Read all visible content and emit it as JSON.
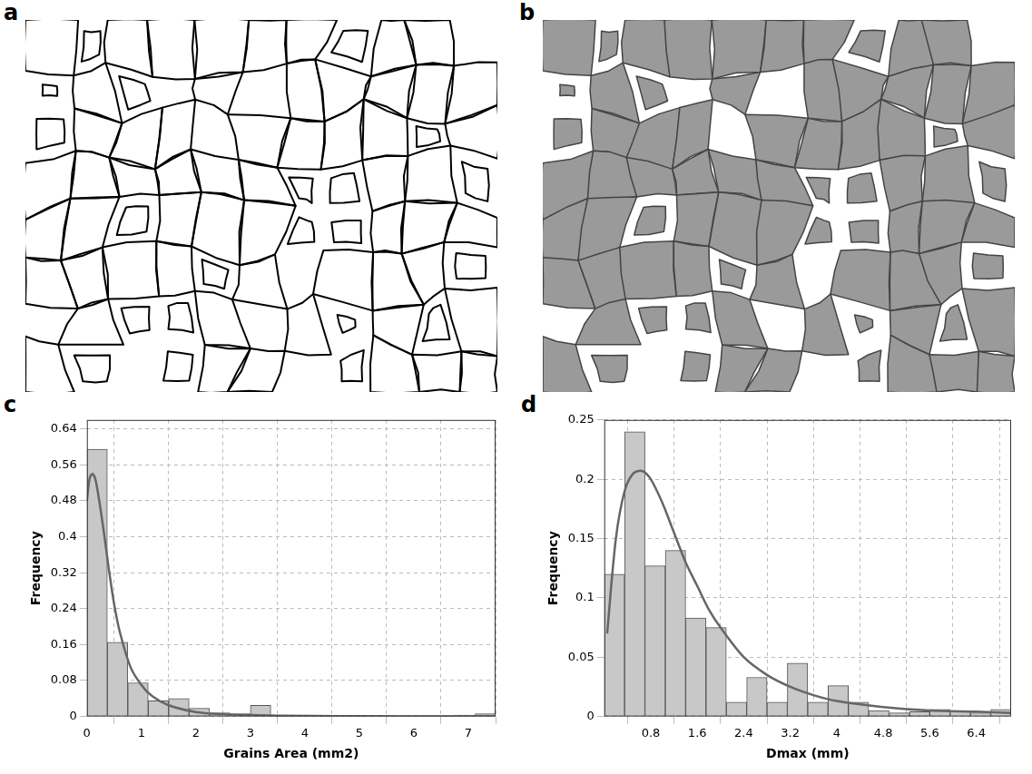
{
  "panel_labels": [
    "a",
    "b"
  ],
  "chart_data": [
    {
      "panel_label": "c",
      "type": "histogram",
      "x_label": "Grains Area (mm2)",
      "y_label": "Frequency",
      "bins": [
        0,
        0.375,
        0.75,
        1.125,
        1.5,
        1.875,
        2.25,
        2.625,
        3.0,
        3.375,
        3.75,
        4.125,
        4.5,
        4.875,
        5.25,
        5.625,
        6.0,
        6.375,
        6.75,
        7.125,
        7.5
      ],
      "counts": [
        0.595,
        0.165,
        0.075,
        0.035,
        0.04,
        0.018,
        0.008,
        0.006,
        0.025,
        0.003,
        0.003,
        0.003,
        0.002,
        0.002,
        0.002,
        0.001,
        0.001,
        0.001,
        0.003,
        0.006
      ],
      "color": "#c8c8c8",
      "xlim": [
        0,
        7.5
      ],
      "ylim": [
        0,
        0.66
      ],
      "xticks": [
        0,
        1,
        2,
        3,
        4,
        5,
        6,
        7
      ],
      "yticks": [
        0,
        0.08,
        0.16,
        0.24,
        0.32,
        0.4,
        0.48,
        0.56,
        0.64
      ],
      "grid": true,
      "series": [
        {
          "type": "line",
          "color": "#666666",
          "x": [
            0,
            0.05,
            0.1,
            0.15,
            0.2,
            0.3,
            0.4,
            0.5,
            0.6,
            0.8,
            1.0,
            1.2,
            1.5,
            2,
            2.5,
            3,
            4,
            5,
            6,
            7,
            7.5
          ],
          "values": [
            0.48,
            0.53,
            0.54,
            0.53,
            0.5,
            0.42,
            0.33,
            0.25,
            0.19,
            0.11,
            0.07,
            0.045,
            0.025,
            0.01,
            0.005,
            0.003,
            0.001,
            0.0005,
            0.0003,
            0.0002,
            0.0001
          ]
        }
      ]
    },
    {
      "panel_label": "d",
      "type": "histogram",
      "x_label": "Dmax (mm)",
      "y_label": "Frequency",
      "bins": [
        0,
        0.35,
        0.7,
        1.05,
        1.4,
        1.75,
        2.1,
        2.45,
        2.8,
        3.15,
        3.5,
        3.85,
        4.2,
        4.55,
        4.9,
        5.25,
        5.6,
        5.95,
        6.3,
        6.65,
        7.0
      ],
      "counts": [
        0.12,
        0.24,
        0.127,
        0.14,
        0.083,
        0.075,
        0.012,
        0.033,
        0.012,
        0.045,
        0.012,
        0.026,
        0.012,
        0.005,
        0.003,
        0.004,
        0.006,
        0.004,
        0.003,
        0.006
      ],
      "color": "#c8c8c8",
      "xlim": [
        0,
        7.0
      ],
      "ylim": [
        0,
        0.25
      ],
      "xticks": [
        0.8,
        1.6,
        2.4,
        3.2,
        4,
        4.8,
        5.6,
        6.4
      ],
      "yticks": [
        0,
        0.05,
        0.1,
        0.15,
        0.2,
        0.25
      ],
      "grid": true,
      "series": [
        {
          "type": "line",
          "color": "#666666",
          "x": [
            0.05,
            0.2,
            0.35,
            0.5,
            0.65,
            0.8,
            1,
            1.2,
            1.4,
            1.6,
            1.8,
            2,
            2.4,
            2.8,
            3.2,
            3.6,
            4,
            4.8,
            5.6,
            6.4,
            7
          ],
          "values": [
            0.07,
            0.15,
            0.19,
            0.205,
            0.207,
            0.2,
            0.18,
            0.155,
            0.13,
            0.11,
            0.09,
            0.075,
            0.05,
            0.035,
            0.025,
            0.018,
            0.013,
            0.008,
            0.005,
            0.004,
            0.003
          ]
        }
      ]
    }
  ]
}
